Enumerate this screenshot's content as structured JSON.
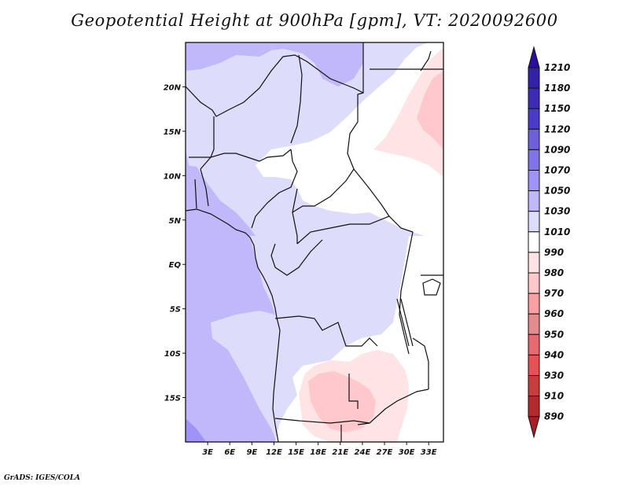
{
  "title": "Geopotential Height at 900hPa [gpm], VT: 2020092600",
  "credit": "GrADS: IGES/COLA",
  "map": {
    "variable": "Geopotential Height",
    "level": "900hPa",
    "units": "gpm",
    "valid_time": "2020092600",
    "lon_range": [
      0,
      35
    ],
    "lat_range": [
      -20,
      25
    ],
    "x_ticks": [
      "3E",
      "6E",
      "9E",
      "12E",
      "15E",
      "18E",
      "21E",
      "24E",
      "27E",
      "30E",
      "33E"
    ],
    "x_tick_values": [
      3,
      6,
      9,
      12,
      15,
      18,
      21,
      24,
      27,
      30,
      33
    ],
    "y_ticks": [
      "20N",
      "15N",
      "10N",
      "5N",
      "EQ",
      "5S",
      "10S",
      "15S"
    ],
    "y_tick_values": [
      20,
      15,
      10,
      5,
      0,
      -5,
      -10,
      -15
    ]
  },
  "colorbar": {
    "levels": [
      "1210",
      "1180",
      "1150",
      "1120",
      "1090",
      "1070",
      "1050",
      "1030",
      "1010",
      "990",
      "980",
      "970",
      "960",
      "950",
      "940",
      "930",
      "910",
      "890"
    ],
    "colors": [
      "#2a0fa0",
      "#3321a8",
      "#3d2bb5",
      "#4a3cc8",
      "#6c60db",
      "#7f74e6",
      "#9f93f7",
      "#c0b8f8",
      "#dedcfb",
      "#ffffff",
      "#ffe4e6",
      "#ffc8cc",
      "#f8a0a4",
      "#e28c90",
      "#e46c70",
      "#e45256",
      "#c93c3e",
      "#b32a2c",
      "#a82024"
    ],
    "top_arrow_color": "#2a0fa0",
    "bottom_arrow_color": "#a82024"
  }
}
